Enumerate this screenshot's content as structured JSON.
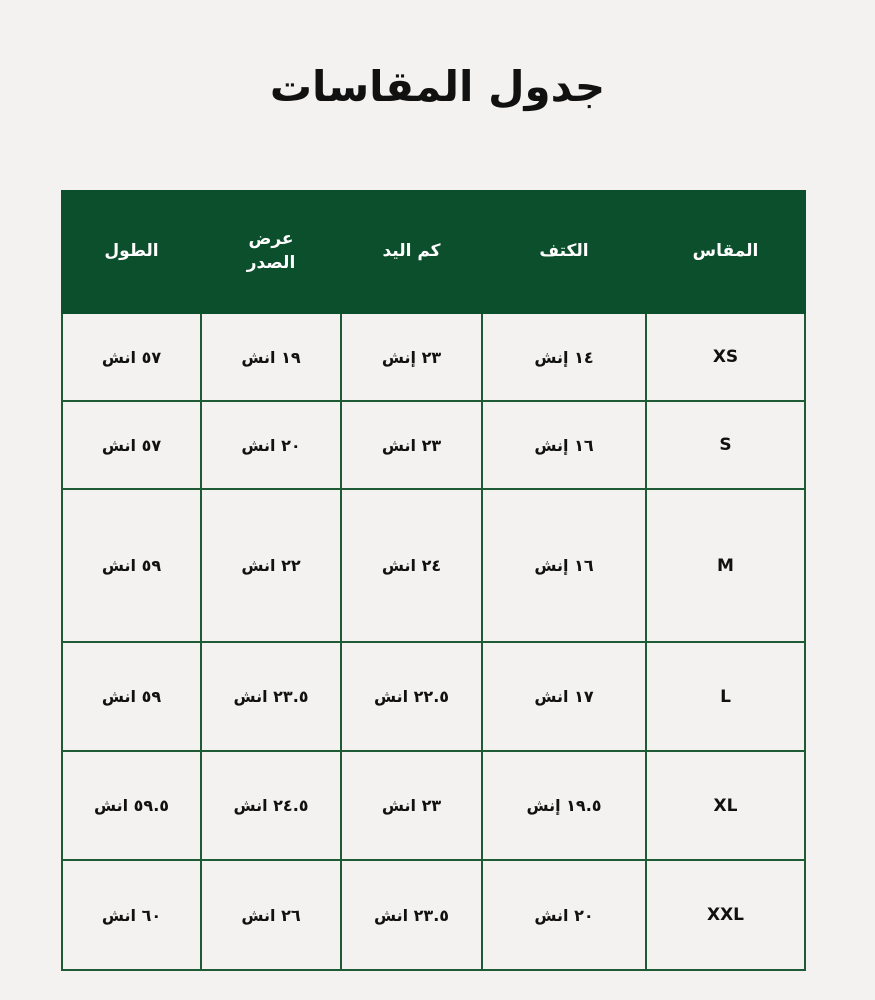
{
  "title": "جدول المقاسات",
  "header_color": "#0c4f2c",
  "columns": [
    "المقاس",
    "الكتف",
    "كم اليد",
    "عرض الصدر",
    "الطول"
  ],
  "rows": [
    {
      "size": "XS",
      "shoulder": "١٤ إنش",
      "sleeve": "٢٣ إنش",
      "chest": "١٩ انش",
      "length": "٥٧ انش"
    },
    {
      "size": "S",
      "shoulder": "١٦ إنش",
      "sleeve": "٢٣ انش",
      "chest": "٢٠ انش",
      "length": "٥٧ انش"
    },
    {
      "size": "M",
      "shoulder": "١٦ إنش",
      "sleeve": "٢٤ انش",
      "chest": "٢٢ انش",
      "length": "٥٩ انش"
    },
    {
      "size": "L",
      "shoulder": "١٧ انش",
      "sleeve": "٢٢.٥ انش",
      "chest": "٢٣.٥ انش",
      "length": "٥٩ انش"
    },
    {
      "size": "XL",
      "shoulder": "١٩.٥ إنش",
      "sleeve": "٢٣ انش",
      "chest": "٢٤.٥ انش",
      "length": "٥٩.٥ انش"
    },
    {
      "size": "XXL",
      "shoulder": "٢٠ انش",
      "sleeve": "٢٣.٥ انش",
      "chest": "٢٦ انش",
      "length": "٦٠ انش"
    }
  ]
}
